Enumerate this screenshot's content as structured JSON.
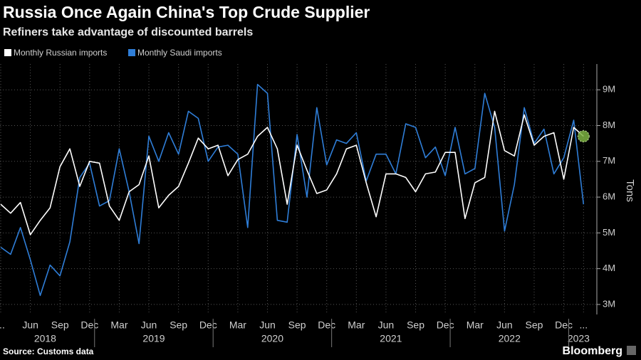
{
  "chart_data": {
    "type": "line",
    "title": "Russia Once Again China's Top Crude Supplier",
    "subtitle": "Refiners take advantage of discounted barrels",
    "y_axis_label": "Tons",
    "source": "Source: Customs data",
    "brand": "Bloomberg",
    "categories": [
      "...",
      null,
      null,
      "Jun",
      null,
      null,
      "Sep",
      null,
      null,
      "Dec",
      null,
      null,
      "Mar",
      null,
      null,
      "Jun",
      null,
      null,
      "Sep",
      null,
      null,
      "Dec",
      null,
      null,
      "Mar",
      null,
      null,
      "Jun",
      null,
      null,
      "Sep",
      null,
      null,
      "Dec",
      null,
      null,
      "Mar",
      null,
      null,
      "Jun",
      null,
      null,
      "Sep",
      null,
      null,
      "Dec",
      null,
      null,
      "Mar",
      null,
      null,
      "Jun",
      null,
      null,
      "Sep",
      null,
      null,
      "Dec",
      null,
      "..."
    ],
    "year_labels": [
      "2018",
      "2019",
      "2020",
      "2021",
      "2022",
      "2023"
    ],
    "series": [
      {
        "name": "Monthly Russian imports",
        "color": "#ffffff",
        "values": [
          5800000,
          5550000,
          5850000,
          4950000,
          5350000,
          5700000,
          6850000,
          7350000,
          6300000,
          7000000,
          6950000,
          5750000,
          5350000,
          6150000,
          6350000,
          7150000,
          5700000,
          6050000,
          6300000,
          6950000,
          7650000,
          7350000,
          7450000,
          6600000,
          7050000,
          7200000,
          7700000,
          7950000,
          7350000,
          5800000,
          7450000,
          6750000,
          6100000,
          6200000,
          6650000,
          7350000,
          7450000,
          6400000,
          5450000,
          6650000,
          6650000,
          6550000,
          6150000,
          6650000,
          6700000,
          7250000,
          7250000,
          5400000,
          6400000,
          6550000,
          8400000,
          7300000,
          7150000,
          8300000,
          7450000,
          7700000,
          7800000,
          6500000,
          7950000,
          7700000
        ]
      },
      {
        "name": "Monthly Saudi imports",
        "color": "#2f7ed8",
        "values": [
          4600000,
          4400000,
          5150000,
          4250000,
          3250000,
          4100000,
          3800000,
          4750000,
          6550000,
          6950000,
          5750000,
          5900000,
          7350000,
          6150000,
          4700000,
          7700000,
          7000000,
          7800000,
          7200000,
          8400000,
          8200000,
          7000000,
          7400000,
          7450000,
          7200000,
          5150000,
          9150000,
          8900000,
          5350000,
          5300000,
          7750000,
          6000000,
          8500000,
          6900000,
          7600000,
          7500000,
          7800000,
          6450000,
          7200000,
          7200000,
          6650000,
          8050000,
          7950000,
          7100000,
          7400000,
          6600000,
          7950000,
          6650000,
          6800000,
          8900000,
          7950000,
          5050000,
          6350000,
          8500000,
          7500000,
          7900000,
          6650000,
          7100000,
          8150000,
          5800000
        ]
      }
    ],
    "highlight_color": "#7cb342",
    "ylim": [
      2720000,
      9720000
    ],
    "yticks": [
      {
        "value": 3000000,
        "label": "3M"
      },
      {
        "value": 4000000,
        "label": "4M"
      },
      {
        "value": 5000000,
        "label": "5M"
      },
      {
        "value": 6000000,
        "label": "6M"
      },
      {
        "value": 7000000,
        "label": "7M"
      },
      {
        "value": 8000000,
        "label": "8M"
      },
      {
        "value": 9000000,
        "label": "9M"
      }
    ],
    "grid": true
  }
}
